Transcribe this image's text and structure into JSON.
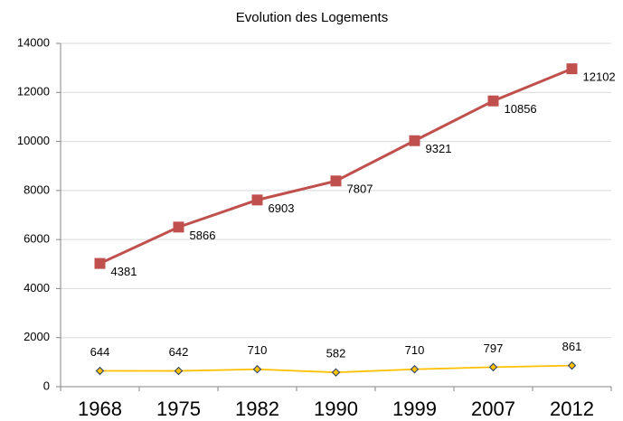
{
  "chart_data": {
    "type": "line",
    "stacked": true,
    "title": "Evolution des Logements",
    "categories": [
      "1968",
      "1975",
      "1982",
      "1990",
      "1999",
      "2007",
      "2012"
    ],
    "series": [
      {
        "color": "#ffc000",
        "marker": "diamond",
        "values": [
          644,
          642,
          710,
          582,
          710,
          797,
          861
        ]
      },
      {
        "color": "#c0504d",
        "marker": "square",
        "values": [
          4381,
          5866,
          6903,
          7807,
          9321,
          10856,
          12102
        ]
      }
    ],
    "ylim": [
      0,
      14000
    ],
    "yticks": [
      0,
      2000,
      4000,
      6000,
      8000,
      10000,
      12000,
      14000
    ],
    "grid": true
  }
}
